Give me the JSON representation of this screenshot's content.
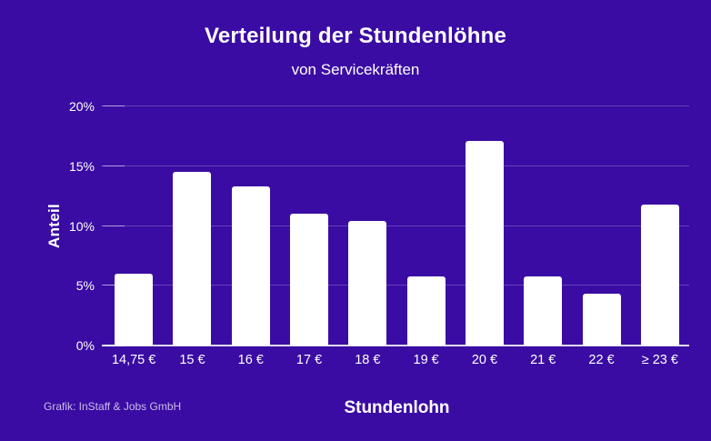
{
  "chart_data": {
    "type": "bar",
    "title": "Verteilung der Stundenlöhne",
    "subtitle": "von Servicekräften",
    "xlabel": "Stundenlohn",
    "ylabel": "Anteil",
    "categories": [
      "14,75 €",
      "15 €",
      "16 €",
      "17 €",
      "18 €",
      "19 €",
      "20 €",
      "21 €",
      "22 €",
      "≥ 23 €"
    ],
    "values": [
      6.0,
      14.5,
      13.3,
      11.0,
      10.4,
      5.8,
      17.1,
      5.8,
      4.3,
      11.8
    ],
    "y_ticks": [
      "20%",
      "15%",
      "10%",
      "5%",
      "0%"
    ],
    "ylim": [
      0,
      20
    ],
    "grid": true,
    "legend": null,
    "background_color": "#3a0ca3",
    "bar_color": "#ffffff"
  },
  "footer": {
    "credit": "Grafik: InStaff & Jobs GmbH"
  }
}
